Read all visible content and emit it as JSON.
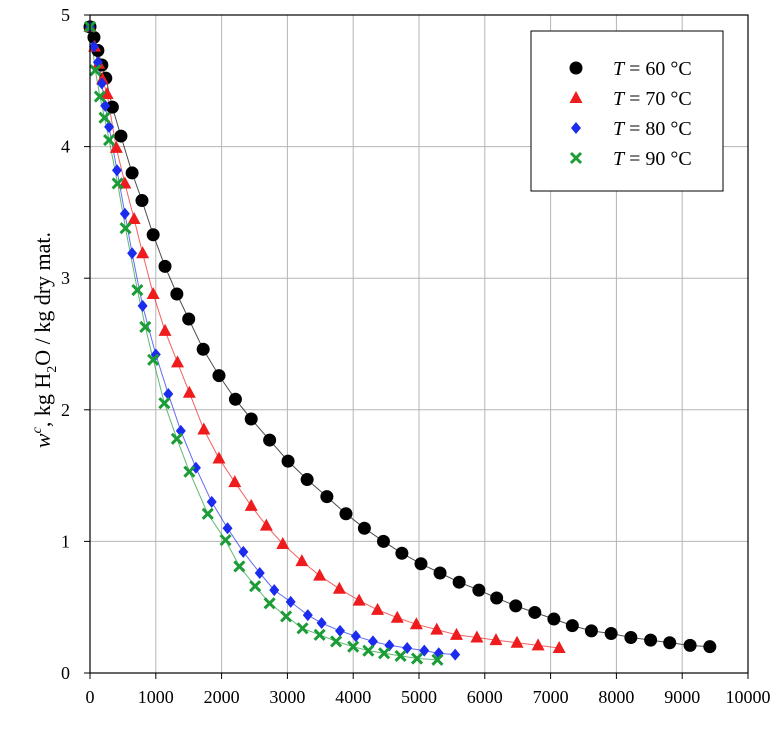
{
  "chart_data": {
    "type": "scatter",
    "xlim": [
      0,
      10000
    ],
    "ylim": [
      0,
      5
    ],
    "xticks": [
      0,
      1000,
      2000,
      3000,
      4000,
      5000,
      6000,
      7000,
      8000,
      9000,
      10000
    ],
    "yticks": [
      0,
      1,
      2,
      3,
      4,
      5
    ],
    "xtick_labels": [
      "0",
      "1000",
      "2000",
      "3000",
      "4000",
      "5000",
      "6000",
      "7000",
      "8000",
      "9000",
      "10000"
    ],
    "ytick_labels": [
      "0",
      "1",
      "2",
      "3",
      "4",
      "5"
    ],
    "ylabel_parts": {
      "w": "w",
      "sup": "c",
      "rest1": ", kg H",
      "sub": "2",
      "rest2": "O / kg dry mat."
    },
    "grid": true,
    "legend_position": "top-right",
    "series": [
      {
        "legend_T": "T",
        "legend_rest": " = 60 °C",
        "marker": "circle",
        "color": "#000000",
        "x": [
          0,
          60,
          120,
          180,
          240,
          340,
          470,
          640,
          790,
          960,
          1140,
          1320,
          1500,
          1720,
          1960,
          2210,
          2450,
          2730,
          3010,
          3300,
          3600,
          3890,
          4170,
          4460,
          4740,
          5030,
          5320,
          5610,
          5910,
          6180,
          6470,
          6760,
          7050,
          7330,
          7620,
          7920,
          8220,
          8520,
          8810,
          9120,
          9420
        ],
        "y": [
          4.91,
          4.83,
          4.73,
          4.62,
          4.52,
          4.3,
          4.08,
          3.8,
          3.59,
          3.33,
          3.09,
          2.88,
          2.69,
          2.46,
          2.26,
          2.08,
          1.93,
          1.77,
          1.61,
          1.47,
          1.34,
          1.21,
          1.1,
          1.0,
          0.91,
          0.83,
          0.76,
          0.69,
          0.63,
          0.57,
          0.51,
          0.46,
          0.41,
          0.36,
          0.32,
          0.3,
          0.27,
          0.25,
          0.23,
          0.21,
          0.2
        ]
      },
      {
        "legend_T": "T",
        "legend_rest": " = 70 °C",
        "marker": "triangle",
        "color": "#ee1c1c",
        "x": [
          0,
          70,
          130,
          190,
          260,
          400,
          530,
          670,
          800,
          960,
          1140,
          1330,
          1510,
          1730,
          1960,
          2200,
          2450,
          2680,
          2930,
          3220,
          3490,
          3790,
          4090,
          4370,
          4670,
          4960,
          5270,
          5570,
          5880,
          6170,
          6490,
          6810,
          7130
        ],
        "y": [
          4.91,
          4.76,
          4.63,
          4.51,
          4.4,
          3.99,
          3.72,
          3.45,
          3.19,
          2.88,
          2.6,
          2.36,
          2.13,
          1.85,
          1.63,
          1.45,
          1.27,
          1.12,
          0.98,
          0.85,
          0.74,
          0.64,
          0.55,
          0.48,
          0.42,
          0.37,
          0.33,
          0.29,
          0.27,
          0.25,
          0.23,
          0.21,
          0.19
        ]
      },
      {
        "legend_T": "T",
        "legend_rest": " = 80 °C",
        "marker": "diamond",
        "color": "#1c2cee",
        "x": [
          0,
          60,
          120,
          180,
          230,
          290,
          410,
          530,
          640,
          800,
          1000,
          1190,
          1380,
          1610,
          1850,
          2090,
          2330,
          2580,
          2800,
          3050,
          3310,
          3520,
          3800,
          4040,
          4300,
          4550,
          4820,
          5080,
          5300,
          5550
        ],
        "y": [
          4.91,
          4.76,
          4.64,
          4.48,
          4.31,
          4.15,
          3.82,
          3.49,
          3.19,
          2.79,
          2.42,
          2.12,
          1.84,
          1.56,
          1.3,
          1.1,
          0.92,
          0.76,
          0.63,
          0.54,
          0.44,
          0.38,
          0.32,
          0.28,
          0.24,
          0.21,
          0.19,
          0.17,
          0.15,
          0.14
        ]
      },
      {
        "legend_T": "T",
        "legend_rest": " = 90 °C",
        "marker": "cross",
        "color": "#1b9c36",
        "x": [
          0,
          80,
          150,
          220,
          290,
          420,
          540,
          720,
          840,
          960,
          1130,
          1320,
          1510,
          1790,
          2060,
          2270,
          2510,
          2730,
          2980,
          3230,
          3490,
          3740,
          4000,
          4230,
          4470,
          4720,
          4970,
          5280
        ],
        "y": [
          4.91,
          4.58,
          4.38,
          4.22,
          4.05,
          3.72,
          3.38,
          2.91,
          2.63,
          2.38,
          2.05,
          1.78,
          1.53,
          1.21,
          1.01,
          0.81,
          0.66,
          0.53,
          0.43,
          0.34,
          0.29,
          0.24,
          0.2,
          0.17,
          0.15,
          0.13,
          0.11,
          0.1
        ]
      }
    ]
  }
}
